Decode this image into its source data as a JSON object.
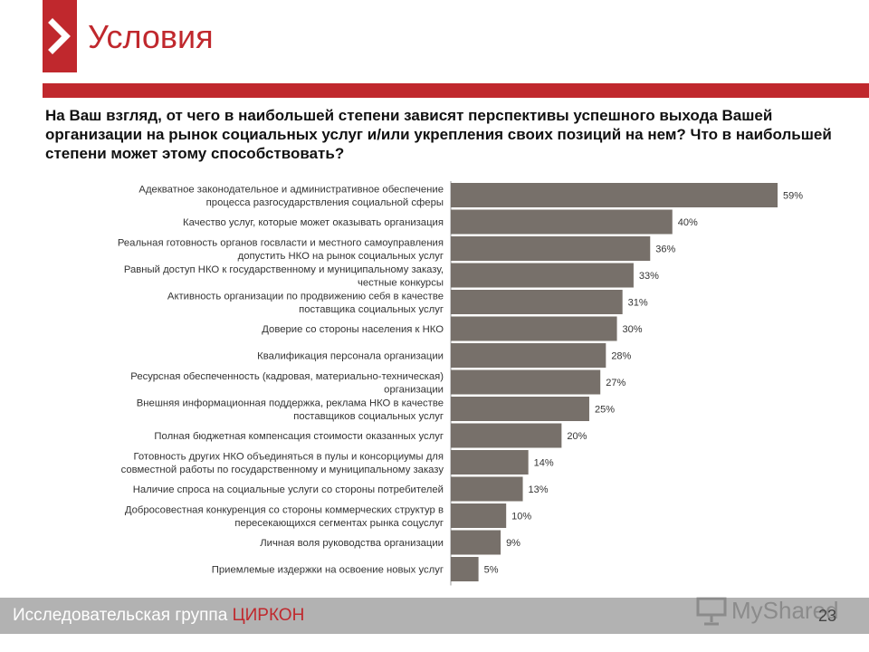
{
  "slide": {
    "title": "Условия",
    "question": "На Ваш взгляд, от чего в наибольшей степени зависят перспективы успешного выхода Вашей организации на рынок социальных услуг и/или укрепления своих позиций на нем? Что в наибольшей степени может этому способствовать?",
    "footer_prefix": "Исследовательская группа ",
    "footer_brand": "ЦИРКОН",
    "page_number": "23",
    "watermark": "MyShared"
  },
  "colors": {
    "accent": "#c0282d",
    "bar": "#77706a",
    "footer": "#b2b2b2"
  },
  "chart_data": {
    "type": "bar",
    "orientation": "horizontal",
    "categories": [
      [
        "Адекватное законодательное и административное обеспечение",
        "процесса разгосударствления социальной сферы"
      ],
      [
        "Качество услуг, которые может оказывать организация"
      ],
      [
        "Реальная готовность органов госвласти и местного самоуправления",
        "допустить НКО на рынок социальных услуг"
      ],
      [
        "Равный доступ НКО к государственному и муниципальному заказу,",
        "честные конкурсы"
      ],
      [
        "Активность организации по продвижению себя в качестве",
        "поставщика социальных услуг"
      ],
      [
        "Доверие со стороны населения к НКО"
      ],
      [
        "Квалификация персонала организации"
      ],
      [
        "Ресурсная обеспеченность (кадровая, материально-техническая)",
        "организации"
      ],
      [
        "Внешняя информационная поддержка, реклама НКО в качестве",
        "поставщиков социальных услуг"
      ],
      [
        "Полная бюджетная компенсация стоимости оказанных услуг"
      ],
      [
        "Готовность других НКО объединяться в пулы и консорциумы для",
        "совместной работы по государственному и муниципальному заказу"
      ],
      [
        "Наличие спроса на социальные услуги со стороны потребителей"
      ],
      [
        "Добросовестная конкуренция со стороны коммерческих структур в",
        "пересекающихся сегментах рынка соцуслуг"
      ],
      [
        "Личная воля руководства организации"
      ],
      [
        "Приемлемые издержки на освоение новых услуг"
      ]
    ],
    "values": [
      59,
      40,
      36,
      33,
      31,
      30,
      28,
      27,
      25,
      20,
      14,
      13,
      10,
      9,
      5
    ],
    "value_labels": [
      "59%",
      "40%",
      "36%",
      "33%",
      "31%",
      "30%",
      "28%",
      "27%",
      "25%",
      "20%",
      "14%",
      "13%",
      "10%",
      "9%",
      "5%"
    ],
    "unit": "%",
    "xlim": [
      0,
      59
    ],
    "grid": false,
    "legend": "none"
  }
}
